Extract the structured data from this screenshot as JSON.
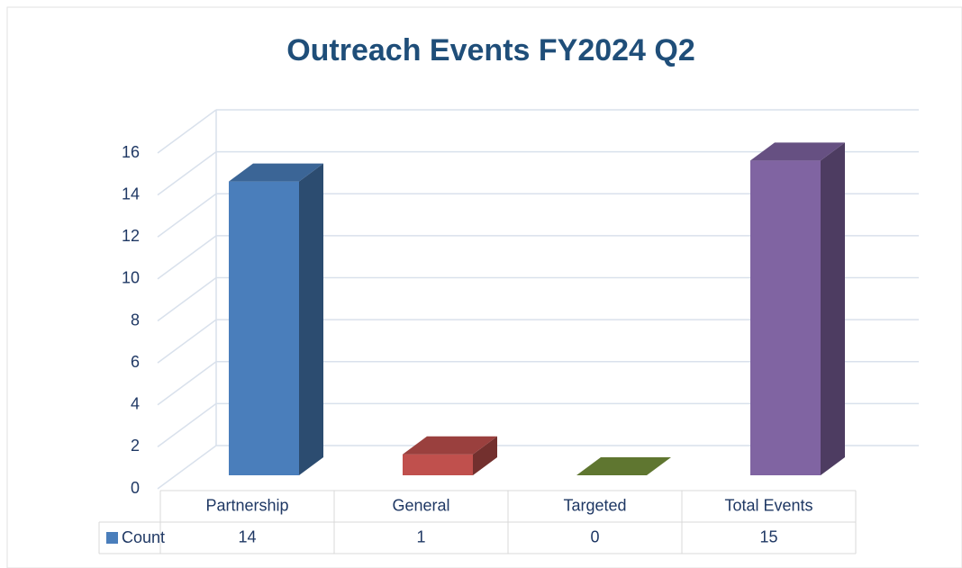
{
  "chart_data": {
    "type": "bar3d",
    "title": "Outreach Events FY2024 Q2",
    "categories": [
      "Partnership",
      "General",
      "Targeted",
      "Total Events"
    ],
    "series": [
      {
        "name": "Count",
        "color": "#4a7ebb",
        "colors": [
          "#4a7ebb",
          "#c0504d",
          "#77933c",
          "#8064a2"
        ],
        "values": [
          14,
          1,
          0,
          15
        ]
      }
    ],
    "ylim": [
      0,
      16
    ],
    "yticks": [
      0,
      2,
      4,
      6,
      8,
      10,
      12,
      14,
      16
    ],
    "grid": true,
    "data_table": true
  }
}
